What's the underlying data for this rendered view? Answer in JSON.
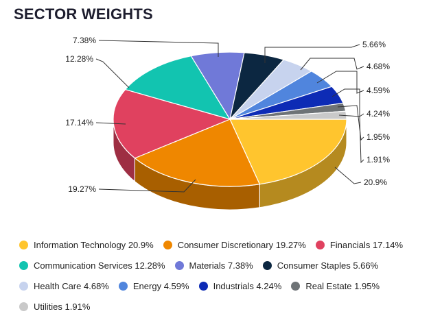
{
  "chart_data": {
    "type": "pie",
    "title": "SECTOR WEIGHTS",
    "legend_position": "bottom",
    "slices": [
      {
        "name": "Information Technology",
        "value": 20.9,
        "label": "20.9%",
        "color": "#FFC52E",
        "side_color": "#B58A1F"
      },
      {
        "name": "Consumer Discretionary",
        "value": 19.27,
        "label": "19.27%",
        "color": "#EF8700",
        "side_color": "#A85F00"
      },
      {
        "name": "Financials",
        "value": 17.14,
        "label": "17.14%",
        "color": "#E0415F",
        "side_color": "#9E2E43"
      },
      {
        "name": "Communication Services",
        "value": 12.28,
        "label": "12.28%",
        "color": "#12C4B0",
        "side_color": "#0C8A7C"
      },
      {
        "name": "Materials",
        "value": 7.38,
        "label": "7.38%",
        "color": "#7079D8",
        "side_color": "#4F5598"
      },
      {
        "name": "Consumer Staples",
        "value": 5.66,
        "label": "5.66%",
        "color": "#0C2741",
        "side_color": "#08192B"
      },
      {
        "name": "Health Care",
        "value": 4.68,
        "label": "4.68%",
        "color": "#C7D3EE",
        "side_color": "#8C95A8"
      },
      {
        "name": "Energy",
        "value": 4.59,
        "label": "4.59%",
        "color": "#5085DD",
        "side_color": "#385E9B"
      },
      {
        "name": "Industrials",
        "value": 4.24,
        "label": "4.24%",
        "color": "#0D2BB5",
        "side_color": "#091E80"
      },
      {
        "name": "Real Estate",
        "value": 1.95,
        "label": "1.95%",
        "color": "#6E7376",
        "side_color": "#4D5153"
      },
      {
        "name": "Utilities",
        "value": 1.91,
        "label": "1.91%",
        "color": "#C9C9C9",
        "side_color": "#8E8E8E"
      }
    ]
  }
}
